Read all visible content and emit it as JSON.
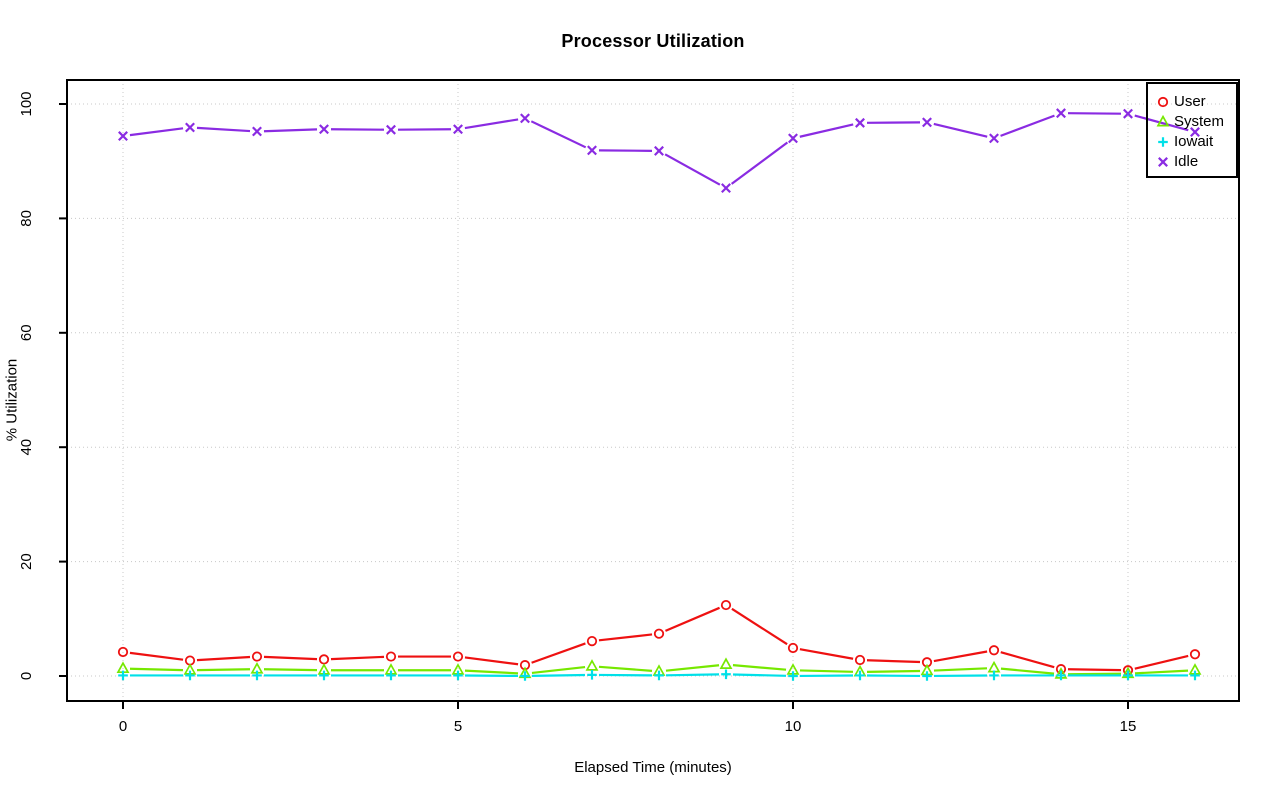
{
  "chart_data": {
    "type": "line",
    "title": "Processor Utilization",
    "xlabel": "Elapsed Time (minutes)",
    "ylabel": "% Utilization",
    "x": [
      0,
      1,
      2,
      3,
      4,
      5,
      6,
      7,
      8,
      9,
      10,
      11,
      12,
      13,
      14,
      15,
      16
    ],
    "x_ticks": [
      0,
      5,
      10,
      15
    ],
    "y_ticks": [
      0,
      20,
      40,
      60,
      80,
      100
    ],
    "xlim": [
      -0.84,
      16.66
    ],
    "ylim": [
      -4.2,
      104.2
    ],
    "grid": true,
    "grid_style": "dotted",
    "legend_position": "topright",
    "series": [
      {
        "name": "User",
        "marker": "circle",
        "color": "#ee1111",
        "values": [
          4.2,
          2.7,
          3.4,
          2.9,
          3.4,
          3.4,
          1.9,
          6.1,
          7.4,
          12.4,
          4.9,
          2.8,
          2.4,
          4.5,
          1.2,
          1.0,
          3.8
        ]
      },
      {
        "name": "System",
        "marker": "triangle",
        "color": "#76e800",
        "values": [
          1.3,
          1.0,
          1.2,
          1.0,
          1.0,
          1.0,
          0.4,
          1.7,
          0.8,
          2.0,
          1.0,
          0.7,
          0.9,
          1.4,
          0.3,
          0.4,
          1.0
        ]
      },
      {
        "name": "Iowait",
        "marker": "plus",
        "color": "#00e0e8",
        "values": [
          0.1,
          0.1,
          0.1,
          0.1,
          0.1,
          0.1,
          0.0,
          0.2,
          0.1,
          0.3,
          0.0,
          0.1,
          0.0,
          0.1,
          0.1,
          0.1,
          0.1
        ]
      },
      {
        "name": "Idle",
        "marker": "x",
        "color": "#8a2be2",
        "values": [
          94.4,
          95.9,
          95.2,
          95.6,
          95.5,
          95.6,
          97.5,
          91.9,
          91.8,
          85.3,
          94.0,
          96.7,
          96.8,
          94.0,
          98.4,
          98.3,
          95.1
        ]
      }
    ]
  },
  "style": {
    "grid_color": "#c8c8c8",
    "axis_color": "#000000",
    "background": "#ffffff"
  }
}
